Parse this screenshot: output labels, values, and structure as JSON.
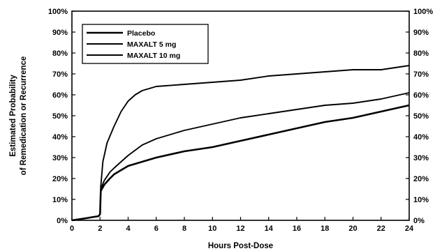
{
  "chart_data": {
    "type": "line",
    "title": "",
    "xlabel": "Hours Post-Dose",
    "ylabel_lines": [
      "Estimated Probability",
      "of Remedication or Recurrence"
    ],
    "xlim": [
      0,
      24
    ],
    "ylim": [
      0,
      100
    ],
    "x_ticks": [
      0,
      2,
      4,
      6,
      8,
      10,
      12,
      14,
      16,
      18,
      20,
      22,
      24
    ],
    "y_ticks": [
      0,
      10,
      20,
      30,
      40,
      50,
      60,
      70,
      80,
      90,
      100
    ],
    "y_tick_suffix": "%",
    "right_axis": true,
    "grid": false,
    "legend_position": "top-left",
    "series": [
      {
        "name": "Placebo",
        "style": "thick",
        "points": [
          [
            0,
            0
          ],
          [
            1,
            1
          ],
          [
            1.9,
            2
          ],
          [
            2,
            3
          ],
          [
            2.05,
            14
          ],
          [
            2.3,
            17
          ],
          [
            2.7,
            20
          ],
          [
            3,
            22
          ],
          [
            3.5,
            24
          ],
          [
            4,
            26
          ],
          [
            5,
            28
          ],
          [
            6,
            30
          ],
          [
            8,
            33
          ],
          [
            10,
            35
          ],
          [
            12,
            38
          ],
          [
            14,
            41
          ],
          [
            16,
            44
          ],
          [
            18,
            47
          ],
          [
            20,
            49
          ],
          [
            22,
            52
          ],
          [
            24,
            55
          ]
        ]
      },
      {
        "name": "MAXALT 5 mg",
        "style": "medium",
        "points": [
          [
            0,
            0
          ],
          [
            1,
            1
          ],
          [
            1.9,
            2
          ],
          [
            2,
            3
          ],
          [
            2.05,
            15
          ],
          [
            2.3,
            19
          ],
          [
            2.7,
            23
          ],
          [
            3,
            25
          ],
          [
            3.5,
            28
          ],
          [
            4,
            31
          ],
          [
            5,
            36
          ],
          [
            6,
            39
          ],
          [
            8,
            43
          ],
          [
            10,
            46
          ],
          [
            12,
            49
          ],
          [
            14,
            51
          ],
          [
            16,
            53
          ],
          [
            18,
            55
          ],
          [
            20,
            56
          ],
          [
            22,
            58
          ],
          [
            24,
            61
          ]
        ]
      },
      {
        "name": "MAXALT 10 mg",
        "style": "medium",
        "points": [
          [
            0,
            0
          ],
          [
            1,
            1
          ],
          [
            1.9,
            2
          ],
          [
            2,
            3
          ],
          [
            2.05,
            16
          ],
          [
            2.2,
            28
          ],
          [
            2.5,
            37
          ],
          [
            3,
            45
          ],
          [
            3.5,
            52
          ],
          [
            4,
            57
          ],
          [
            4.5,
            60
          ],
          [
            5,
            62
          ],
          [
            6,
            64
          ],
          [
            8,
            65
          ],
          [
            10,
            66
          ],
          [
            12,
            67
          ],
          [
            14,
            69
          ],
          [
            16,
            70
          ],
          [
            18,
            71
          ],
          [
            20,
            72
          ],
          [
            22,
            72
          ],
          [
            24,
            74
          ]
        ]
      }
    ]
  }
}
